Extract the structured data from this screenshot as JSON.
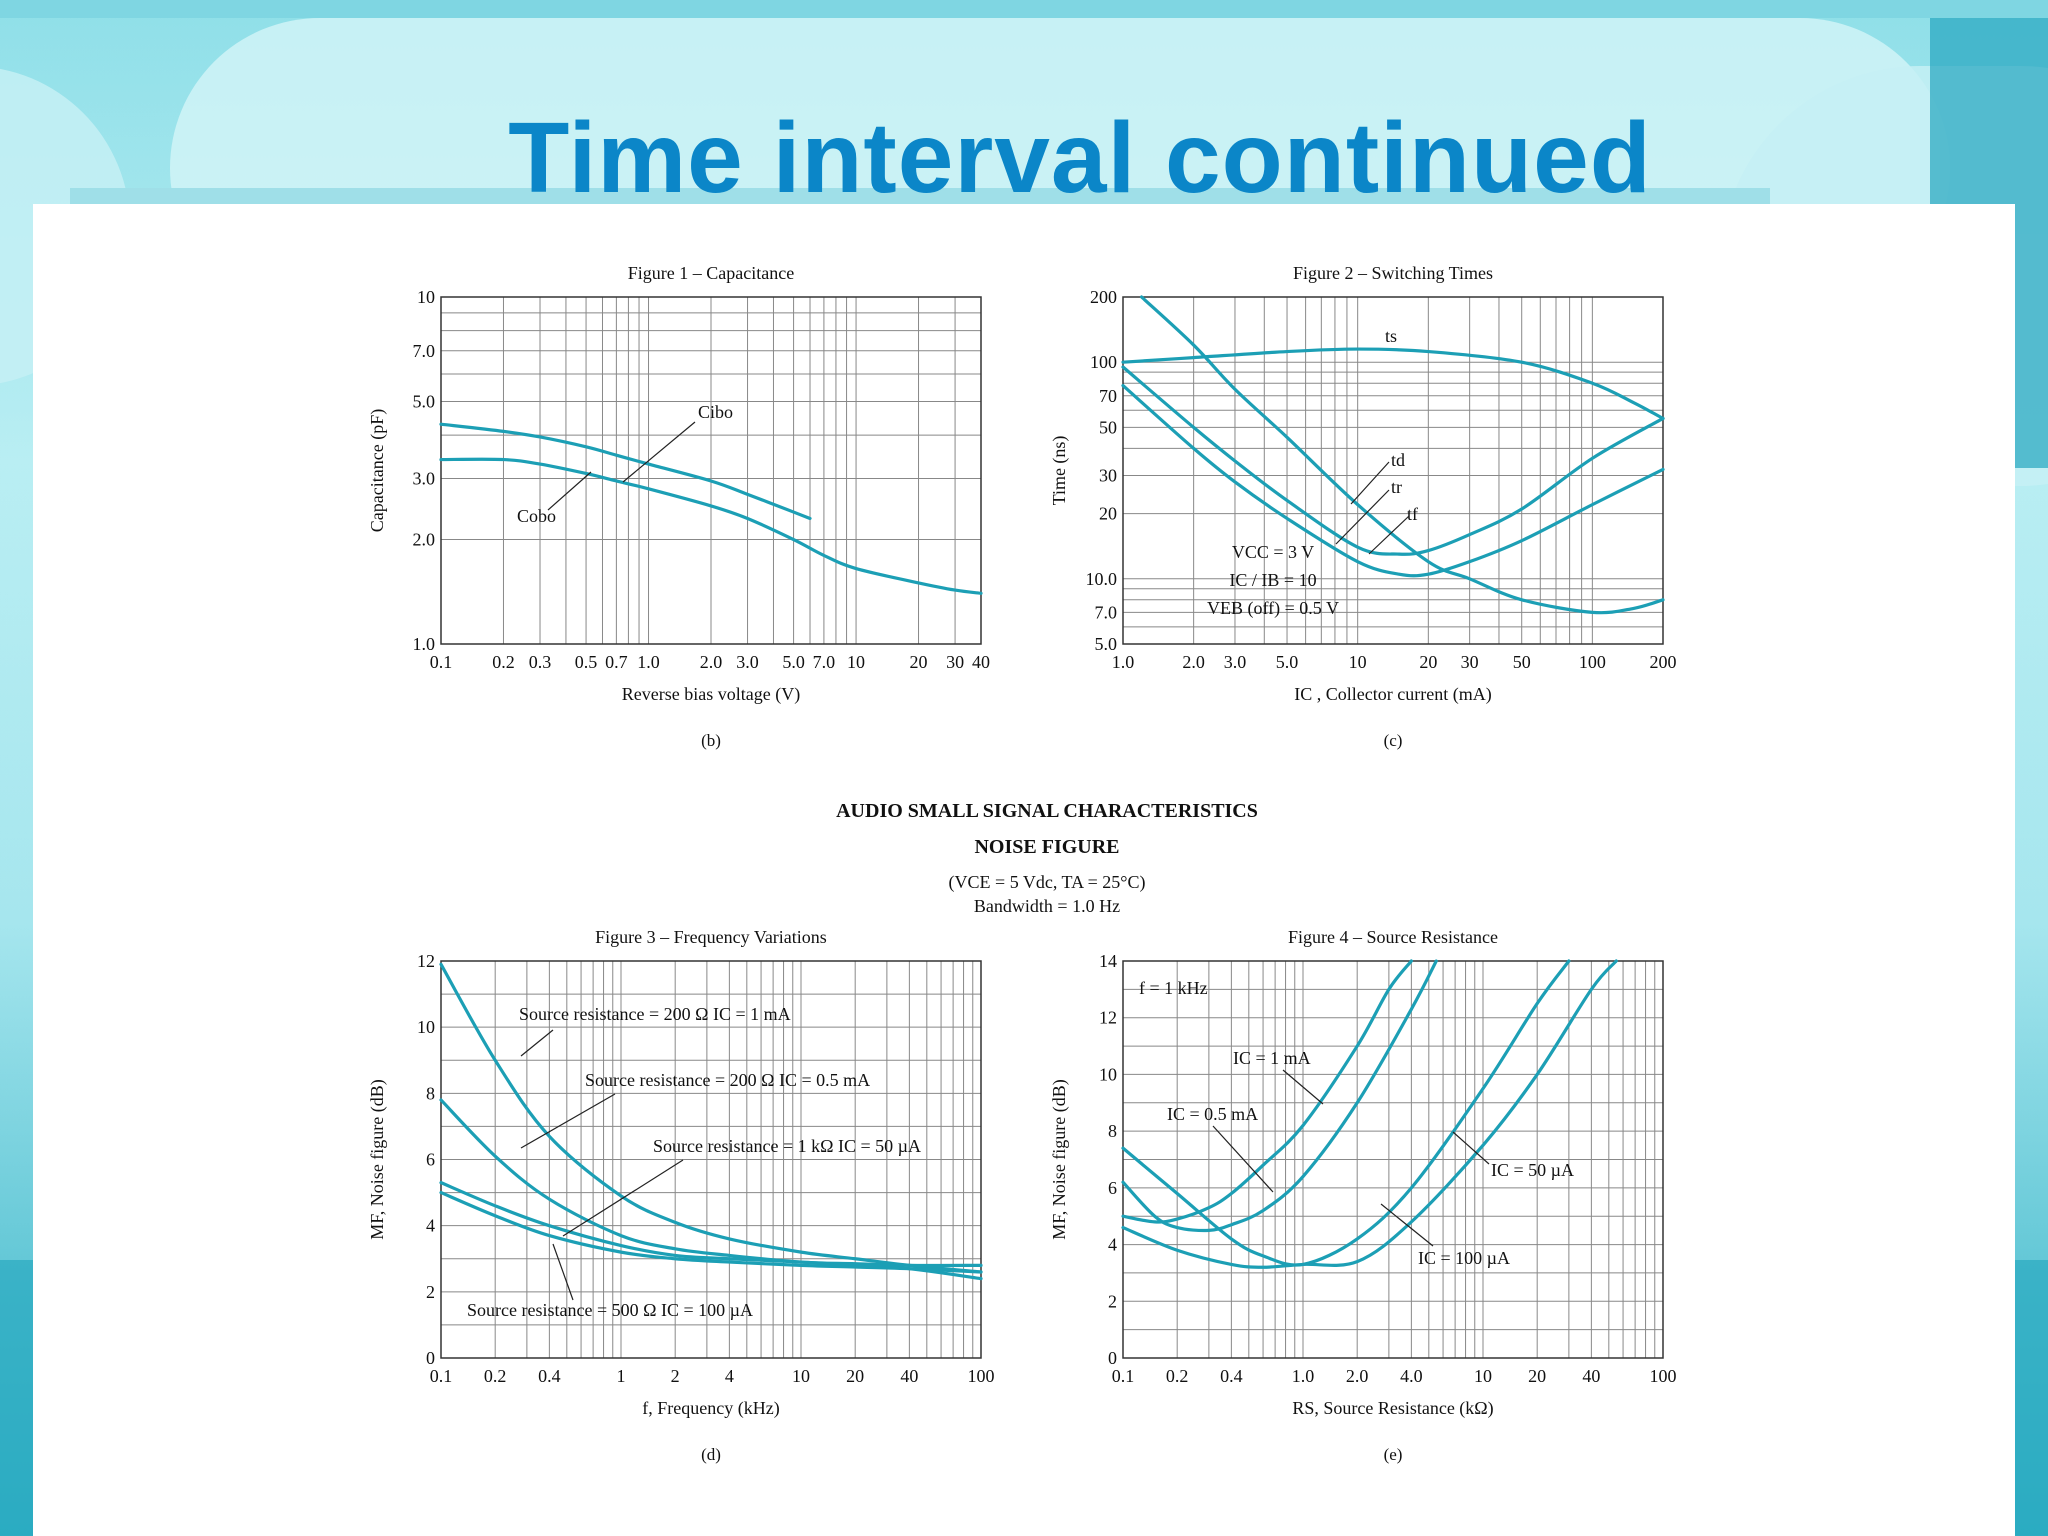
{
  "slide": {
    "title": "Time interval continued",
    "section_title": "AUDIO SMALL SIGNAL CHARACTERISTICS",
    "section_subtitle": "NOISE FIGURE",
    "conditions": "(VCE = 5 Vdc, TA = 25°C)",
    "bandwidth": "Bandwidth = 1.0 Hz"
  },
  "colors": {
    "curve": "#1c9fb5",
    "grid": "#888888",
    "title": "#0b86c8",
    "text": "#111111"
  },
  "chart_data": [
    {
      "id": "fig1",
      "type": "line",
      "title": "Figure 1 – Capacitance",
      "xlabel": "Reverse bias voltage (V)",
      "ylabel": "Capacitance (pF)",
      "caption": "(b)",
      "xscale": "log",
      "yscale": "log",
      "xlim": [
        0.1,
        40
      ],
      "ylim": [
        1,
        10
      ],
      "xticks": [
        0.1,
        0.2,
        0.3,
        0.5,
        0.7,
        1.0,
        2.0,
        3.0,
        5.0,
        7.0,
        10,
        20,
        30,
        40
      ],
      "xtick_labels": [
        "0.1",
        "0.2",
        "0.3",
        "0.5",
        "0.7",
        "1.0",
        "2.0",
        "3.0",
        "5.0",
        "7.0",
        "10",
        "20",
        "30",
        "40"
      ],
      "yticks": [
        1,
        2,
        3,
        5,
        7,
        10
      ],
      "ytick_labels": [
        "1.0",
        "2.0",
        "3.0",
        "5.0",
        "7.0",
        "10"
      ],
      "series": [
        {
          "name": "Cibo",
          "x": [
            0.1,
            0.2,
            0.3,
            0.5,
            0.7,
            1.0,
            2.0,
            3.0,
            5.0,
            6.0
          ],
          "y": [
            4.3,
            4.1,
            3.95,
            3.7,
            3.5,
            3.3,
            2.95,
            2.7,
            2.4,
            2.3
          ]
        },
        {
          "name": "Cobo",
          "x": [
            0.1,
            0.2,
            0.3,
            0.5,
            0.7,
            1.0,
            2.0,
            3.0,
            5.0,
            7.0,
            10,
            20,
            30,
            40
          ],
          "y": [
            3.4,
            3.4,
            3.3,
            3.1,
            2.95,
            2.8,
            2.5,
            2.3,
            2.0,
            1.8,
            1.65,
            1.5,
            1.43,
            1.4
          ]
        }
      ]
    },
    {
      "id": "fig2",
      "type": "line",
      "title": "Figure 2 – Switching Times",
      "xlabel": "IC , Collector current (mA)",
      "ylabel": "Time (ns)",
      "caption": "(c)",
      "xscale": "log",
      "yscale": "log",
      "xlim": [
        1,
        200
      ],
      "ylim": [
        5,
        200
      ],
      "xticks": [
        1,
        2,
        3,
        5,
        10,
        20,
        30,
        50,
        100,
        200
      ],
      "xtick_labels": [
        "1.0",
        "2.0",
        "3.0",
        "5.0",
        "10",
        "20",
        "30",
        "50",
        "100",
        "200"
      ],
      "yticks": [
        5,
        7,
        10,
        20,
        30,
        50,
        70,
        100,
        200
      ],
      "ytick_labels": [
        "5.0",
        "7.0",
        "10.0",
        "20",
        "30",
        "50",
        "70",
        "100",
        "200"
      ],
      "annotations": [
        "VCC = 3 V",
        "IC / IB = 10",
        "VEB (off) = 0.5 V"
      ],
      "series": [
        {
          "name": "ts",
          "x": [
            1,
            2,
            5,
            10,
            20,
            50,
            100,
            150,
            200
          ],
          "y": [
            100,
            105,
            112,
            115,
            112,
            100,
            80,
            65,
            55
          ]
        },
        {
          "name": "td",
          "x": [
            1,
            2,
            3,
            5,
            10,
            15,
            20,
            30,
            50,
            100,
            200
          ],
          "y": [
            95,
            50,
            35,
            23,
            14,
            13,
            13.5,
            16,
            21,
            36,
            55
          ]
        },
        {
          "name": "tr",
          "x": [
            1,
            2,
            3,
            5,
            10,
            15,
            20,
            30,
            50,
            100,
            200
          ],
          "y": [
            78,
            40,
            28,
            19,
            12,
            10.5,
            10.5,
            12,
            15,
            22,
            32
          ]
        },
        {
          "name": "tf",
          "x": [
            1.2,
            2,
            3,
            5,
            10,
            20,
            30,
            50,
            100,
            150,
            200
          ],
          "y": [
            200,
            120,
            75,
            45,
            22,
            12,
            10,
            8,
            7,
            7.3,
            8
          ]
        }
      ]
    },
    {
      "id": "fig3",
      "type": "line",
      "title": "Figure 3 – Frequency Variations",
      "xlabel": "f, Frequency (kHz)",
      "ylabel": "MF, Noise figure (dB)",
      "caption": "(d)",
      "xscale": "log",
      "yscale": "linear",
      "xlim": [
        0.1,
        100
      ],
      "ylim": [
        0,
        12
      ],
      "xticks": [
        0.1,
        0.2,
        0.4,
        1,
        2,
        4,
        10,
        20,
        40,
        100
      ],
      "xtick_labels": [
        "0.1",
        "0.2",
        "0.4",
        "1",
        "2",
        "4",
        "10",
        "20",
        "40",
        "100"
      ],
      "yticks": [
        0,
        2,
        4,
        6,
        8,
        10,
        12
      ],
      "ytick_labels": [
        "0",
        "2",
        "4",
        "6",
        "8",
        "10",
        "12"
      ],
      "series": [
        {
          "name": "Source resistance = 200 Ω  IC = 1 mA",
          "x": [
            0.1,
            0.2,
            0.4,
            1,
            2,
            4,
            10,
            20,
            40,
            100
          ],
          "y": [
            11.9,
            9.0,
            6.7,
            4.9,
            4.1,
            3.6,
            3.2,
            3.0,
            2.8,
            2.6
          ]
        },
        {
          "name": "Source resistance = 200 Ω  IC = 0.5 mA",
          "x": [
            0.1,
            0.2,
            0.4,
            1,
            2,
            4,
            10,
            20,
            40,
            100
          ],
          "y": [
            7.8,
            6.1,
            4.8,
            3.7,
            3.3,
            3.1,
            2.9,
            2.85,
            2.8,
            2.8
          ]
        },
        {
          "name": "Source resistance = 1 kΩ  IC = 50 µA",
          "x": [
            0.1,
            0.2,
            0.4,
            1,
            2,
            4,
            10,
            20,
            40,
            100
          ],
          "y": [
            5.3,
            4.6,
            4.0,
            3.4,
            3.1,
            3.0,
            2.9,
            2.8,
            2.7,
            2.4
          ]
        },
        {
          "name": "Source resistance = 500 Ω  IC = 100 µA",
          "x": [
            0.1,
            0.2,
            0.4,
            1,
            2,
            4,
            10,
            20,
            40,
            100
          ],
          "y": [
            5.0,
            4.3,
            3.7,
            3.2,
            3.0,
            2.9,
            2.8,
            2.75,
            2.7,
            2.6
          ]
        }
      ]
    },
    {
      "id": "fig4",
      "type": "line",
      "title": "Figure 4 – Source Resistance",
      "xlabel": "RS, Source Resistance (kΩ)",
      "ylabel": "MF, Noise figure (dB)",
      "caption": "(e)",
      "xscale": "log",
      "yscale": "linear",
      "xlim": [
        0.1,
        100
      ],
      "ylim": [
        0,
        14
      ],
      "xticks": [
        0.1,
        0.2,
        0.4,
        1.0,
        2.0,
        4.0,
        10,
        20,
        40,
        100
      ],
      "xtick_labels": [
        "0.1",
        "0.2",
        "0.4",
        "1.0",
        "2.0",
        "4.0",
        "10",
        "20",
        "40",
        "100"
      ],
      "yticks": [
        0,
        2,
        4,
        6,
        8,
        10,
        12,
        14
      ],
      "ytick_labels": [
        "0",
        "2",
        "4",
        "6",
        "8",
        "10",
        "12",
        "14"
      ],
      "annotations": [
        "f = 1 kHz"
      ],
      "series": [
        {
          "name": "IC = 1 mA",
          "x": [
            0.1,
            0.15,
            0.2,
            0.3,
            0.4,
            0.6,
            1.0,
            2.0,
            3.0,
            4.0
          ],
          "y": [
            5.0,
            4.8,
            4.9,
            5.3,
            5.8,
            6.8,
            8.2,
            11.0,
            13.0,
            14.0
          ]
        },
        {
          "name": "IC = 0.5 mA",
          "x": [
            0.1,
            0.15,
            0.2,
            0.3,
            0.4,
            0.6,
            1.0,
            2.0,
            4.0,
            5.5
          ],
          "y": [
            6.2,
            5.0,
            4.6,
            4.5,
            4.7,
            5.2,
            6.4,
            9.0,
            12.3,
            14.0
          ]
        },
        {
          "name": "IC = 100 µA",
          "x": [
            0.1,
            0.2,
            0.4,
            0.6,
            1.0,
            2.0,
            4.0,
            10,
            20,
            30
          ],
          "y": [
            7.4,
            5.8,
            4.2,
            3.6,
            3.3,
            4.2,
            6.0,
            9.5,
            12.5,
            14.0
          ]
        },
        {
          "name": "IC = 50 µA",
          "x": [
            0.1,
            0.2,
            0.4,
            0.6,
            1.0,
            2.0,
            4.0,
            10,
            20,
            40,
            55
          ],
          "y": [
            4.6,
            3.8,
            3.3,
            3.2,
            3.3,
            3.4,
            4.8,
            7.5,
            10.0,
            13.0,
            14.0
          ]
        }
      ]
    }
  ]
}
